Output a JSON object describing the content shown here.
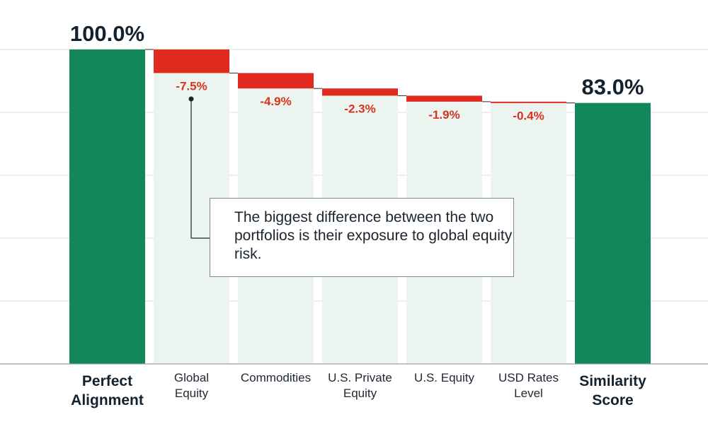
{
  "chart_data": {
    "type": "waterfall",
    "title": "",
    "xlabel": "",
    "ylabel": "",
    "ylim": [
      0,
      100
    ],
    "grid": true,
    "colors": {
      "total": "#12875a",
      "decrease": "#e02a20",
      "decrease_label": "#d63322",
      "column_background": "#ebf4ee",
      "grid": "#dcdcdc",
      "axis": "#9aa0a6",
      "text": "#14212e"
    },
    "bars": [
      {
        "category": "Perfect Alignment",
        "category_lines": [
          "Perfect",
          "Alignment"
        ],
        "kind": "total",
        "value": 100.0,
        "value_label": "100.0%"
      },
      {
        "category": "Global Equity",
        "category_lines": [
          "Global",
          "Equity"
        ],
        "kind": "decrease",
        "value": -7.5,
        "value_label": "-7.5%"
      },
      {
        "category": "Commodities",
        "category_lines": [
          "Commodities"
        ],
        "kind": "decrease",
        "value": -4.9,
        "value_label": "-4.9%"
      },
      {
        "category": "U.S. Private Equity",
        "category_lines": [
          "U.S. Private",
          "Equity"
        ],
        "kind": "decrease",
        "value": -2.3,
        "value_label": "-2.3%"
      },
      {
        "category": "U.S. Equity",
        "category_lines": [
          "U.S. Equity"
        ],
        "kind": "decrease",
        "value": -1.9,
        "value_label": "-1.9%"
      },
      {
        "category": "USD Rates Level",
        "category_lines": [
          "USD Rates",
          "Level"
        ],
        "kind": "decrease",
        "value": -0.4,
        "value_label": "-0.4%"
      },
      {
        "category": "Similarity Score",
        "category_lines": [
          "Similarity",
          "Score"
        ],
        "kind": "total",
        "value": 83.0,
        "value_label": "83.0%"
      }
    ],
    "annotation": {
      "text": "The biggest difference between the two portfolios is their exposure to global equity risk.",
      "target_category": "Global Equity"
    }
  }
}
